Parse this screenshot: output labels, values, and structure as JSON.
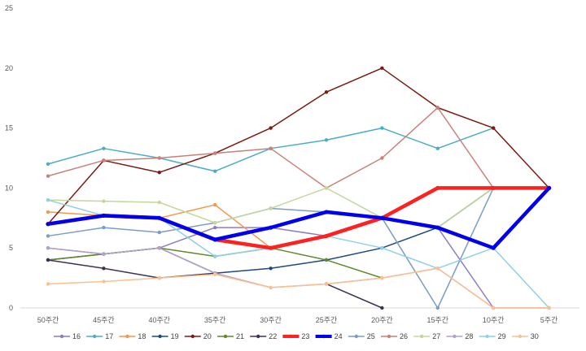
{
  "chart_data": {
    "type": "line",
    "title": "",
    "xlabel": "",
    "ylabel": "",
    "ylim": [
      0,
      25
    ],
    "yticks": [
      0,
      5,
      10,
      15,
      20,
      25
    ],
    "grid": false,
    "legend_position": "bottom",
    "categories": [
      "50주간",
      "45주간",
      "40주간",
      "35주간",
      "30주간",
      "25주간",
      "20주간",
      "15주간",
      "10주간",
      "5주간"
    ],
    "series": [
      {
        "name": "16",
        "color": "#8e7cc3",
        "bold": false,
        "values": [
          5,
          4.5,
          5,
          6.7,
          6.7,
          6,
          7.5,
          6.7,
          0,
          null
        ]
      },
      {
        "name": "17",
        "color": "#4bacc6",
        "bold": false,
        "values": [
          12,
          13.3,
          12.5,
          11.4,
          13.3,
          14,
          15,
          13.3,
          15,
          null
        ]
      },
      {
        "name": "18",
        "color": "#f79646",
        "bold": false,
        "values": [
          8,
          7.7,
          7.5,
          8.6,
          5,
          6,
          7.5,
          10,
          10,
          10
        ]
      },
      {
        "name": "19",
        "color": "#1f497d",
        "bold": false,
        "values": [
          4,
          4.5,
          5,
          2.9,
          3.3,
          4,
          5,
          6.7,
          10,
          10
        ]
      },
      {
        "name": "20",
        "color": "#7b1a12",
        "bold": false,
        "values": [
          7,
          12.3,
          11.3,
          12.9,
          15,
          18,
          20,
          16.7,
          15,
          10
        ]
      },
      {
        "name": "21",
        "color": "#5e8a2a",
        "bold": false,
        "values": [
          4,
          4.5,
          5,
          4.3,
          5,
          4,
          2.5,
          null,
          null,
          null
        ]
      },
      {
        "name": "22",
        "color": "#403152",
        "bold": false,
        "values": [
          4,
          3.3,
          2.5,
          2.9,
          null,
          2,
          0,
          null,
          null,
          null
        ]
      },
      {
        "name": "23",
        "color": "#ff2020",
        "bold": true,
        "values": [
          7,
          7.7,
          7.5,
          5.7,
          5,
          6,
          7.5,
          10,
          10,
          10
        ]
      },
      {
        "name": "24",
        "color": "#0000ee",
        "bold": true,
        "values": [
          7,
          7.7,
          7.5,
          5.7,
          6.7,
          8,
          7.5,
          6.7,
          5,
          10
        ]
      },
      {
        "name": "25",
        "color": "#7a9cc6",
        "bold": false,
        "values": [
          6,
          6.7,
          6.3,
          7.1,
          8.3,
          8,
          7.5,
          0,
          10,
          null
        ]
      },
      {
        "name": "26",
        "color": "#c9807a",
        "bold": false,
        "values": [
          11,
          12.3,
          12.5,
          12.9,
          13.3,
          10,
          12.5,
          16.7,
          10,
          null
        ]
      },
      {
        "name": "27",
        "color": "#c3d69b",
        "bold": false,
        "values": [
          9,
          8.9,
          8.8,
          7.1,
          8.3,
          10,
          7.5,
          6.7,
          10,
          10
        ]
      },
      {
        "name": "28",
        "color": "#b3a2c7",
        "bold": false,
        "values": [
          5,
          4.5,
          5,
          2.9,
          1.7,
          2,
          2.5,
          3.3,
          0,
          0
        ]
      },
      {
        "name": "29",
        "color": "#8fd0e8",
        "bold": false,
        "values": [
          9,
          7.7,
          7.5,
          4.3,
          5,
          6,
          5,
          3.3,
          5,
          0
        ]
      },
      {
        "name": "30",
        "color": "#fac090",
        "bold": false,
        "values": [
          2,
          2.2,
          2.5,
          2.8,
          1.7,
          2,
          2.5,
          3.3,
          0,
          0
        ]
      }
    ]
  }
}
